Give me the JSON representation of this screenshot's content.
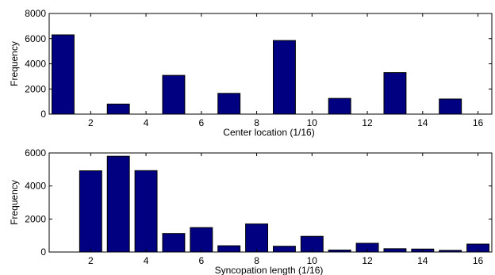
{
  "chart_data": [
    {
      "type": "bar",
      "xlabel": "Center location (1/16)",
      "ylabel": "Frequency",
      "x": [
        1,
        2,
        3,
        4,
        5,
        6,
        7,
        8,
        9,
        10,
        11,
        12,
        13,
        14,
        15,
        16
      ],
      "values": [
        6300,
        0,
        800,
        0,
        3080,
        0,
        1650,
        0,
        5850,
        0,
        1250,
        0,
        3300,
        0,
        1200,
        0
      ],
      "xlim": [
        0.5,
        16.5
      ],
      "ylim": [
        0,
        8000
      ],
      "xticks": [
        2,
        4,
        6,
        8,
        10,
        12,
        14,
        16
      ],
      "yticks": [
        0,
        2000,
        4000,
        6000,
        8000
      ],
      "grid": false,
      "bar_color": "#000080"
    },
    {
      "type": "bar",
      "xlabel": "Syncopation length (1/16)",
      "ylabel": "Frequency",
      "x": [
        1,
        2,
        3,
        4,
        5,
        6,
        7,
        8,
        9,
        10,
        11,
        12,
        13,
        14,
        15,
        16
      ],
      "values": [
        0,
        4920,
        5800,
        4930,
        1120,
        1480,
        380,
        1700,
        350,
        950,
        120,
        530,
        200,
        180,
        100,
        480
      ],
      "xlim": [
        0.5,
        16.5
      ],
      "ylim": [
        0,
        6000
      ],
      "xticks": [
        2,
        4,
        6,
        8,
        10,
        12,
        14,
        16
      ],
      "yticks": [
        0,
        2000,
        4000,
        6000
      ],
      "grid": false,
      "bar_color": "#000080"
    }
  ]
}
